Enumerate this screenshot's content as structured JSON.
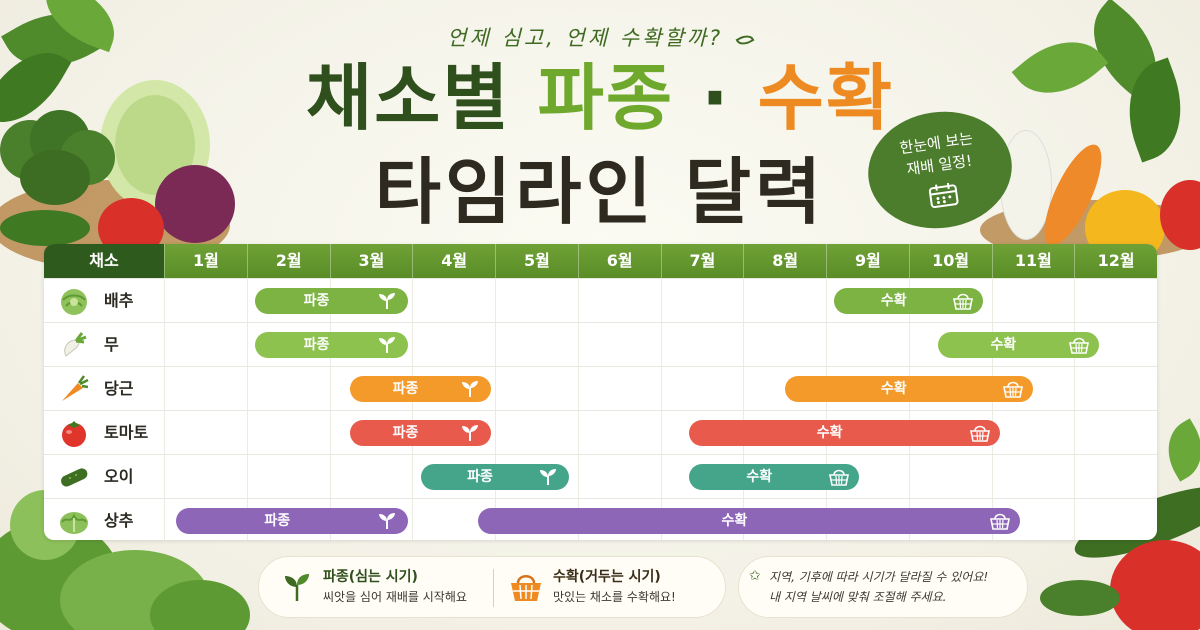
{
  "header": {
    "tagline": "언제 심고, 언제 수확할까?",
    "title_part1": "채소별",
    "title_part2": "파종",
    "title_dot": "·",
    "title_part3": "수확",
    "title_line2": "타임라인 달력",
    "badge_line1": "한눈에 보는",
    "badge_line2": "재배 일정!"
  },
  "colors": {
    "dark_green": "#2f4f1d",
    "light_green": "#8dbd4a",
    "green": "#6ea82c",
    "orange": "#f39a2a",
    "red": "#e85a4c",
    "teal": "#45a58b",
    "purple": "#8d66b8",
    "icon_names": [
      "sprout-icon",
      "basket-icon",
      "calendar-icon"
    ]
  },
  "chart_data": {
    "type": "table",
    "corner_label": "채소",
    "months": [
      "1월",
      "2월",
      "3월",
      "4월",
      "5월",
      "6월",
      "7월",
      "8월",
      "9월",
      "10월",
      "11월",
      "12월"
    ],
    "rows": [
      {
        "name": "배추",
        "icon": "cabbage-icon",
        "color": "#7cb342",
        "bars": [
          {
            "type": "파종",
            "start": 2.1,
            "end": 3.95,
            "icon": "sprout-icon"
          },
          {
            "type": "수확",
            "start": 9.1,
            "end": 10.9,
            "icon": "basket-icon"
          }
        ]
      },
      {
        "name": "무",
        "icon": "radish-icon",
        "color": "#8dc24f",
        "bars": [
          {
            "type": "파종",
            "start": 2.1,
            "end": 3.95,
            "icon": "sprout-icon"
          },
          {
            "type": "수확",
            "start": 10.35,
            "end": 12.3,
            "icon": "basket-icon"
          }
        ]
      },
      {
        "name": "당근",
        "icon": "carrot-icon",
        "color": "#f39a2a",
        "bars": [
          {
            "type": "파종",
            "start": 3.25,
            "end": 4.95,
            "icon": "sprout-icon"
          },
          {
            "type": "수확",
            "start": 8.5,
            "end": 11.5,
            "icon": "basket-icon"
          }
        ]
      },
      {
        "name": "토마토",
        "icon": "tomato-icon",
        "color": "#e85a4c",
        "bars": [
          {
            "type": "파종",
            "start": 3.25,
            "end": 4.95,
            "icon": "sprout-icon"
          },
          {
            "type": "수확",
            "start": 7.35,
            "end": 11.1,
            "icon": "basket-icon"
          }
        ]
      },
      {
        "name": "오이",
        "icon": "cucumber-icon",
        "color": "#45a58b",
        "bars": [
          {
            "type": "파종",
            "start": 4.1,
            "end": 5.9,
            "icon": "sprout-icon"
          },
          {
            "type": "수확",
            "start": 7.35,
            "end": 9.4,
            "icon": "basket-icon"
          }
        ]
      },
      {
        "name": "상추",
        "icon": "lettuce-icon",
        "color": "#8d66b8",
        "bars": [
          {
            "type": "파종",
            "start": 1.15,
            "end": 3.95,
            "icon": "sprout-icon"
          },
          {
            "type": "수확",
            "start": 4.8,
            "end": 11.35,
            "icon": "basket-icon"
          }
        ]
      }
    ]
  },
  "legend": {
    "sow_title": "파종(심는 시기)",
    "sow_desc": "씨앗을 심어 재배를 시작해요",
    "harvest_title": "수확(거두는 시기)",
    "harvest_desc": "맛있는 채소를 수확해요!"
  },
  "note": {
    "line1": "지역, 기후에 따라 시기가 달라질 수 있어요!",
    "line2": "내 지역 날씨에 맞춰 조절해 주세요."
  }
}
